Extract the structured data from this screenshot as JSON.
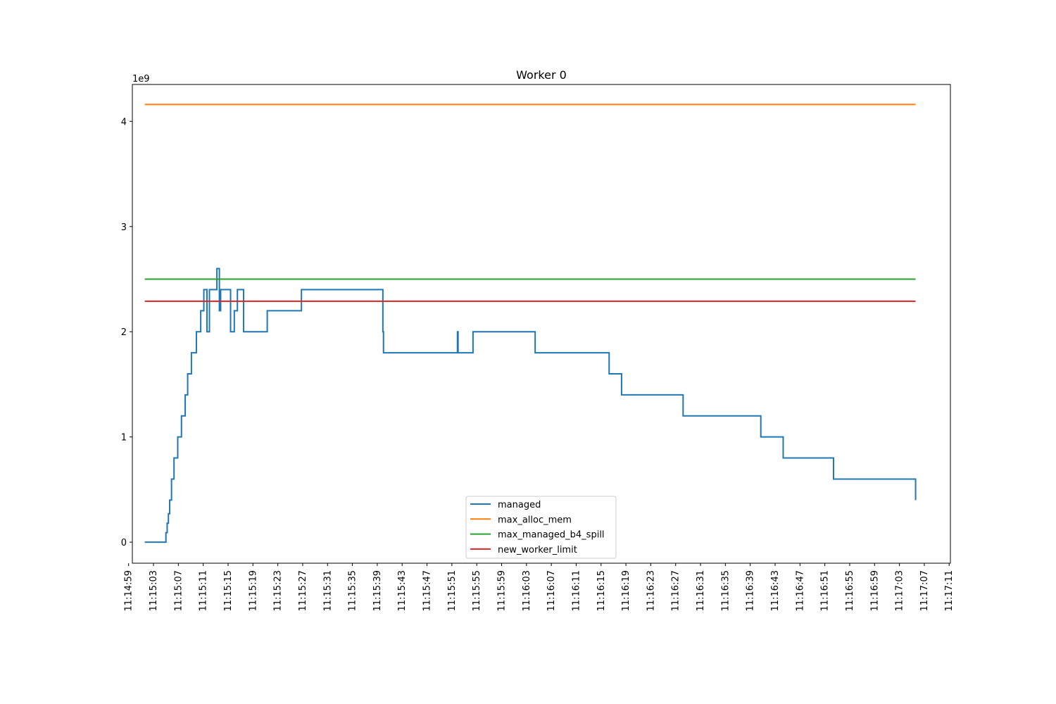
{
  "chart_data": {
    "type": "line",
    "title": "Worker 0",
    "xlabel": "",
    "ylabel": "",
    "y_offset_label": "1e9",
    "y_unit_scale": 1000000000,
    "ylim": [
      -0.2,
      4.35
    ],
    "y_ticks": [
      0,
      1,
      2,
      3,
      4
    ],
    "y_tick_labels": [
      "0",
      "1",
      "2",
      "3",
      "4"
    ],
    "xlim": [
      "11:14:59.6",
      "11:17:11.2"
    ],
    "x_ticks": [
      "11:14:59",
      "11:15:03",
      "11:15:07",
      "11:15:11",
      "11:15:15",
      "11:15:19",
      "11:15:23",
      "11:15:27",
      "11:15:31",
      "11:15:35",
      "11:15:39",
      "11:15:43",
      "11:15:47",
      "11:15:51",
      "11:15:55",
      "11:15:59",
      "11:16:03",
      "11:16:07",
      "11:16:11",
      "11:16:15",
      "11:16:19",
      "11:16:23",
      "11:16:27",
      "11:16:31",
      "11:16:35",
      "11:16:39",
      "11:16:43",
      "11:16:47",
      "11:16:51",
      "11:16:55",
      "11:16:59",
      "11:17:03",
      "11:17:07",
      "11:17:11"
    ],
    "grid": false,
    "legend_position": "lower-center",
    "series": [
      {
        "name": "managed",
        "color": "#1f77b4",
        "drawstyle": "steps-post",
        "x": [
          "11:15:01.6",
          "11:15:05.0",
          "11:15:05.2",
          "11:15:05.4",
          "11:15:05.6",
          "11:15:05.9",
          "11:15:06.3",
          "11:15:06.9",
          "11:15:07.5",
          "11:15:08.1",
          "11:15:08.5",
          "11:15:09.1",
          "11:15:09.9",
          "11:15:10.6",
          "11:15:11.1",
          "11:15:11.6",
          "11:15:12.0",
          "11:15:13.0",
          "11:15:13.2",
          "11:15:13.6",
          "11:15:13.8",
          "11:15:15.4",
          "11:15:16.0",
          "11:15:16.5",
          "11:15:17.5",
          "11:15:18.5",
          "11:15:21.3",
          "11:15:26.8",
          "11:15:39.9",
          "11:15:40.0",
          "11:15:51.9",
          "11:15:52.0",
          "11:15:54.4",
          "11:16:04.4",
          "11:16:16.3",
          "11:16:18.3",
          "11:16:28.2",
          "11:16:40.7",
          "11:16:44.3",
          "11:16:52.4",
          "11:17:05.6"
        ],
        "values": [
          0.0,
          0.09,
          0.18,
          0.27,
          0.4,
          0.6,
          0.8,
          1.0,
          1.2,
          1.4,
          1.6,
          1.8,
          2.0,
          2.2,
          2.4,
          2.0,
          2.4,
          2.4,
          2.6,
          2.2,
          2.4,
          2.0,
          2.2,
          2.4,
          2.0,
          2.0,
          2.2,
          2.4,
          2.0,
          1.8,
          2.0,
          1.8,
          2.0,
          1.8,
          1.6,
          1.4,
          1.2,
          1.0,
          0.8,
          0.6,
          0.4
        ]
      },
      {
        "name": "max_alloc_mem",
        "color": "#ff7f0e",
        "x": [
          "11:15:01.6",
          "11:17:05.6"
        ],
        "values": [
          4.16,
          4.16
        ]
      },
      {
        "name": "max_managed_b4_spill",
        "color": "#2ca02c",
        "x": [
          "11:15:01.6",
          "11:17:05.6"
        ],
        "values": [
          2.5,
          2.5
        ]
      },
      {
        "name": "new_worker_limit",
        "color": "#d62728",
        "x": [
          "11:15:01.6",
          "11:17:05.6"
        ],
        "values": [
          2.29,
          2.29
        ]
      }
    ]
  }
}
